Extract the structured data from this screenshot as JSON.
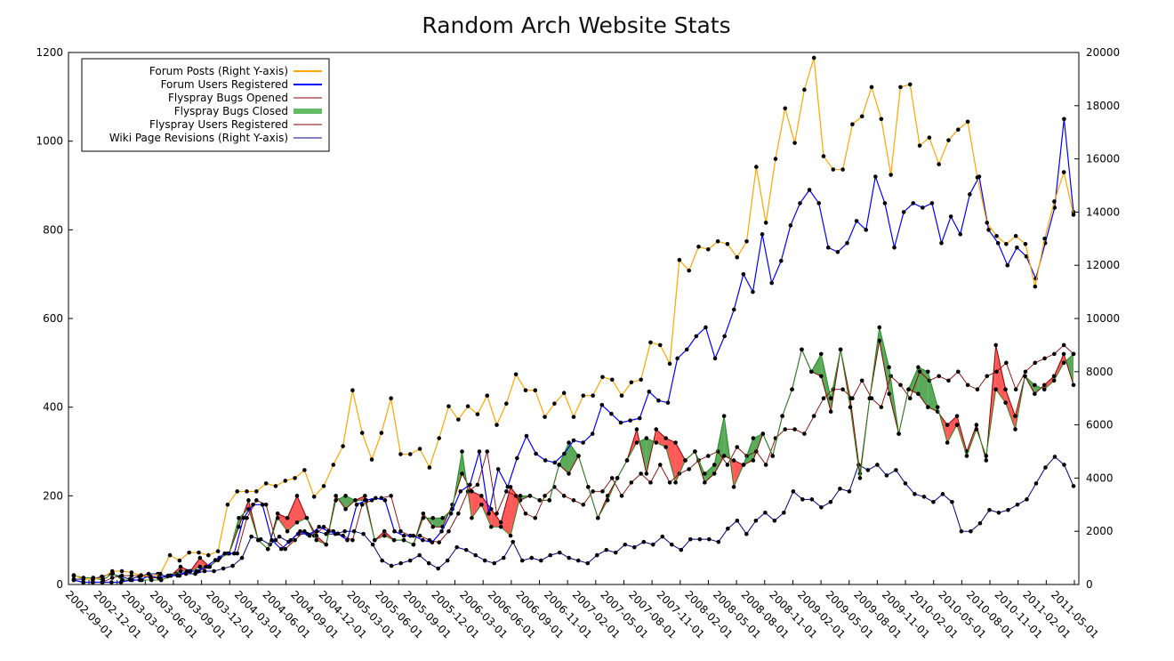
{
  "chart_data": {
    "type": "line",
    "title": "Random Arch Website Stats",
    "x_tick_labels": [
      "2002-09-01",
      "2002-12-01",
      "2003-03-01",
      "2003-06-01",
      "2003-09-01",
      "2003-12-01",
      "2004-03-01",
      "2004-06-01",
      "2004-09-01",
      "2004-12-01",
      "2005-03-01",
      "2005-06-01",
      "2005-09-01",
      "2005-12-01",
      "2006-03-01",
      "2006-06-01",
      "2006-09-01",
      "2006-11-01",
      "2007-02-01",
      "2007-05-01",
      "2007-08-01",
      "2007-11-01",
      "2008-02-01",
      "2008-05-01",
      "2008-08-01",
      "2008-11-01",
      "2009-02-01",
      "2009-05-01",
      "2009-08-01",
      "2009-11-01",
      "2010-02-01",
      "2010-05-01",
      "2010-08-01",
      "2010-11-01",
      "2011-02-01",
      "2011-05-01"
    ],
    "y_left": {
      "ticks": [
        0,
        200,
        400,
        600,
        800,
        1000,
        1200
      ],
      "ylim": [
        0,
        1200
      ]
    },
    "y_right": {
      "ticks": [
        0,
        2000,
        4000,
        6000,
        8000,
        10000,
        12000,
        14000,
        16000,
        18000,
        20000
      ],
      "ylim": [
        0,
        20000
      ]
    },
    "legend_position": "top-left",
    "fill_between": {
      "a": "Flyspray Bugs Opened",
      "b": "Flyspray Bugs Closed",
      "a_greater_color": "#ff5a5a",
      "b_greater_color": "#5aaa5a"
    },
    "series": [
      {
        "name": "Forum Posts (Right Y-axis)",
        "axis": "right",
        "color": "#ffa500",
        "width": 1.2,
        "values": [
          350,
          200,
          200,
          250,
          500,
          500,
          450,
          350,
          300,
          400,
          1100,
          900,
          1200,
          1200,
          1100,
          1250,
          3000,
          3500,
          3500,
          3500,
          3800,
          3700,
          3900,
          4000,
          4300,
          3300,
          3700,
          4500,
          5200,
          7300,
          5700,
          4700,
          5700,
          7000,
          4900,
          4900,
          5100,
          4400,
          5500,
          6700,
          6200,
          6700,
          6400,
          7100,
          6000,
          6800,
          7900,
          7300,
          7300,
          6300,
          6800,
          7200,
          6300,
          7100,
          7100,
          7800,
          7700,
          7100,
          7600,
          7700,
          9100,
          9000,
          8300,
          12200,
          11800,
          12700,
          12600,
          12900,
          12800,
          12300,
          12900,
          15700,
          13600,
          16000,
          17900,
          16600,
          18600,
          19800,
          16100,
          15600,
          15600,
          17300,
          17600,
          18700,
          17500,
          15400,
          18700,
          18800,
          16500,
          16800,
          15800,
          16700,
          17100,
          17400,
          15300,
          13600,
          13100,
          12800,
          13100,
          12800,
          11200,
          13000,
          14400,
          15500,
          13900
        ]
      },
      {
        "name": "Forum Users Registered",
        "axis": "left",
        "color": "#0000ff",
        "width": 1.2,
        "values": [
          10,
          5,
          5,
          5,
          5,
          5,
          10,
          10,
          20,
          15,
          20,
          20,
          30,
          30,
          40,
          55,
          70,
          70,
          150,
          180,
          180,
          100,
          80,
          100,
          120,
          110,
          130,
          120,
          115,
          100,
          180,
          190,
          195,
          190,
          120,
          110,
          110,
          100,
          95,
          120,
          160,
          210,
          225,
          300,
          160,
          260,
          220,
          285,
          335,
          295,
          280,
          275,
          295,
          325,
          320,
          340,
          405,
          385,
          365,
          370,
          375,
          435,
          415,
          410,
          510,
          530,
          560,
          580,
          510,
          560,
          620,
          700,
          660,
          790,
          680,
          730,
          810,
          860,
          890,
          860,
          760,
          750,
          770,
          820,
          800,
          920,
          860,
          760,
          840,
          860,
          850,
          860,
          770,
          830,
          790,
          880,
          920,
          800,
          770,
          720,
          760,
          740,
          690,
          770,
          850,
          1050,
          840
        ]
      },
      {
        "name": "Flyspray Bugs Opened",
        "axis": "left",
        "color": "#8b0000",
        "width": 1.0,
        "values": [
          20,
          15,
          15,
          10,
          25,
          10,
          10,
          10,
          10,
          10,
          20,
          40,
          30,
          60,
          40,
          60,
          70,
          130,
          190,
          100,
          80,
          160,
          150,
          200,
          150,
          110,
          90,
          200,
          170,
          190,
          200,
          100,
          120,
          100,
          100,
          90,
          160,
          130,
          130,
          180,
          250,
          210,
          200,
          170,
          140,
          220,
          190,
          200,
          190,
          190,
          270,
          250,
          290,
          220,
          150,
          200,
          240,
          280,
          350,
          250,
          350,
          330,
          320,
          280,
          300,
          230,
          250,
          290,
          280,
          270,
          280,
          340,
          290,
          380,
          440,
          530,
          480,
          470,
          390,
          530,
          420,
          250,
          420,
          550,
          430,
          340,
          440,
          430,
          400,
          390,
          360,
          380,
          300,
          360,
          280,
          540,
          440,
          380,
          470,
          430,
          450,
          470,
          520,
          450
        ]
      },
      {
        "name": "Flyspray Bugs Closed",
        "axis": "left",
        "color": "#228b22",
        "width": 1.0,
        "values": [
          20,
          15,
          15,
          10,
          25,
          10,
          10,
          10,
          10,
          10,
          20,
          30,
          30,
          40,
          40,
          60,
          70,
          150,
          170,
          100,
          80,
          150,
          120,
          140,
          150,
          100,
          90,
          190,
          200,
          190,
          190,
          100,
          110,
          100,
          100,
          90,
          150,
          150,
          150,
          170,
          300,
          150,
          180,
          130,
          130,
          110,
          200,
          200,
          190,
          190,
          270,
          320,
          290,
          220,
          150,
          190,
          240,
          280,
          320,
          330,
          320,
          310,
          230,
          280,
          300,
          250,
          270,
          380,
          220,
          270,
          330,
          340,
          290,
          380,
          440,
          530,
          480,
          520,
          420,
          530,
          400,
          240,
          420,
          580,
          490,
          340,
          440,
          490,
          480,
          400,
          320,
          360,
          290,
          350,
          290,
          440,
          410,
          350,
          470,
          450,
          440,
          460,
          500,
          520
        ]
      },
      {
        "name": "Flyspray Users Registered",
        "axis": "left",
        "color": "#8b0000",
        "width": 0.9,
        "values": [
          10,
          5,
          5,
          5,
          15,
          20,
          20,
          20,
          15,
          15,
          20,
          20,
          30,
          30,
          40,
          55,
          70,
          70,
          150,
          190,
          180,
          100,
          80,
          100,
          120,
          110,
          130,
          120,
          110,
          100,
          180,
          190,
          195,
          200,
          120,
          110,
          110,
          100,
          95,
          120,
          160,
          210,
          225,
          300,
          160,
          210,
          200,
          160,
          150,
          200,
          220,
          200,
          190,
          180,
          210,
          210,
          240,
          200,
          230,
          250,
          230,
          270,
          230,
          250,
          260,
          280,
          290,
          300,
          270,
          310,
          290,
          300,
          270,
          330,
          350,
          350,
          340,
          380,
          420,
          440,
          440,
          420,
          460,
          420,
          400,
          470,
          450,
          420,
          480,
          460,
          470,
          460,
          480,
          450,
          440,
          470,
          480,
          500,
          440,
          480,
          500,
          510,
          520,
          540,
          520
        ]
      },
      {
        "name": "Wiki Page Revisions (Right Y-axis)",
        "axis": "right",
        "color": "#00008b",
        "width": 1.0,
        "values": [
          200,
          200,
          200,
          300,
          400,
          300,
          200,
          300,
          400,
          400,
          300,
          400,
          400,
          400,
          500,
          500,
          600,
          700,
          1000,
          1800,
          1700,
          1500,
          1800,
          1600,
          1900,
          1900,
          2000,
          1900,
          1900,
          2000,
          2000,
          1900,
          1500,
          900,
          700,
          800,
          900,
          1100,
          800,
          600,
          900,
          1400,
          1300,
          1100,
          900,
          800,
          1000,
          1600,
          900,
          1000,
          900,
          1100,
          1200,
          1000,
          900,
          800,
          1100,
          1300,
          1200,
          1500,
          1400,
          1600,
          1500,
          1800,
          1500,
          1300,
          1700,
          1700,
          1700,
          1600,
          2100,
          2400,
          1900,
          2400,
          2700,
          2400,
          2700,
          3500,
          3200,
          3200,
          2900,
          3100,
          3600,
          3500,
          4500,
          4300,
          4500,
          4100,
          4300,
          3800,
          3400,
          3300,
          3100,
          3400,
          3100,
          2000,
          2000,
          2300,
          2800,
          2700,
          2800,
          3000,
          3200,
          3800,
          4400,
          4800,
          4500,
          3700
        ]
      }
    ]
  }
}
